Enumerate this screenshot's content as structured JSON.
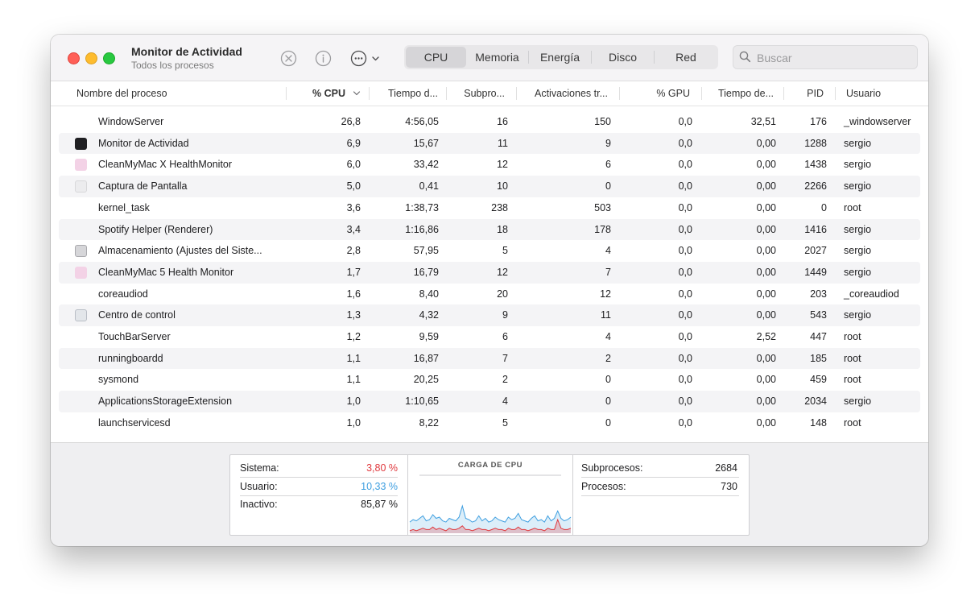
{
  "window": {
    "title": "Monitor de Actividad",
    "subtitle": "Todos los procesos"
  },
  "toolbar": {
    "stop_icon": "xmark-circle-icon",
    "info_icon": "info-circle-icon",
    "more_icon": "ellipsis-circle-icon"
  },
  "tabs": [
    {
      "label": "CPU",
      "active": true
    },
    {
      "label": "Memoria",
      "active": false
    },
    {
      "label": "Energía",
      "active": false
    },
    {
      "label": "Disco",
      "active": false
    },
    {
      "label": "Red",
      "active": false
    }
  ],
  "search": {
    "placeholder": "Buscar",
    "value": ""
  },
  "columns": [
    "Nombre del proceso",
    "% CPU",
    "Tiempo d...",
    "Subpro...",
    "Activaciones tr...",
    "% GPU",
    "Tiempo de...",
    "PID",
    "Usuario"
  ],
  "sorted_column": "% CPU",
  "rows": [
    {
      "name": "WindowServer",
      "cpu": "26,8",
      "time": "4:56,05",
      "threads": "16",
      "wakes": "150",
      "gpu": "0,0",
      "gpu_time": "32,51",
      "pid": "176",
      "user": "_windowserver",
      "icon": "none"
    },
    {
      "name": "Monitor de Actividad",
      "cpu": "6,9",
      "time": "15,67",
      "threads": "11",
      "wakes": "9",
      "gpu": "0,0",
      "gpu_time": "0,00",
      "pid": "1288",
      "user": "sergio",
      "icon": "activity-monitor-icon"
    },
    {
      "name": "CleanMyMac X HealthMonitor",
      "cpu": "6,0",
      "time": "33,42",
      "threads": "12",
      "wakes": "6",
      "gpu": "0,0",
      "gpu_time": "0,00",
      "pid": "1438",
      "user": "sergio",
      "icon": "cleanmymac-icon"
    },
    {
      "name": "Captura de Pantalla",
      "cpu": "5,0",
      "time": "0,41",
      "threads": "10",
      "wakes": "0",
      "gpu": "0,0",
      "gpu_time": "0,00",
      "pid": "2266",
      "user": "sergio",
      "icon": "screenshot-icon"
    },
    {
      "name": "kernel_task",
      "cpu": "3,6",
      "time": "1:38,73",
      "threads": "238",
      "wakes": "503",
      "gpu": "0,0",
      "gpu_time": "0,00",
      "pid": "0",
      "user": "root",
      "icon": "none"
    },
    {
      "name": "Spotify Helper (Renderer)",
      "cpu": "3,4",
      "time": "1:16,86",
      "threads": "18",
      "wakes": "178",
      "gpu": "0,0",
      "gpu_time": "0,00",
      "pid": "1416",
      "user": "sergio",
      "icon": "none"
    },
    {
      "name": "Almacenamiento (Ajustes del Siste...",
      "cpu": "2,8",
      "time": "57,95",
      "threads": "5",
      "wakes": "4",
      "gpu": "0,0",
      "gpu_time": "0,00",
      "pid": "2027",
      "user": "sergio",
      "icon": "storage-icon"
    },
    {
      "name": "CleanMyMac 5 Health Monitor",
      "cpu": "1,7",
      "time": "16,79",
      "threads": "12",
      "wakes": "7",
      "gpu": "0,0",
      "gpu_time": "0,00",
      "pid": "1449",
      "user": "sergio",
      "icon": "cleanmymac-icon"
    },
    {
      "name": "coreaudiod",
      "cpu": "1,6",
      "time": "8,40",
      "threads": "20",
      "wakes": "12",
      "gpu": "0,0",
      "gpu_time": "0,00",
      "pid": "203",
      "user": "_coreaudiod",
      "icon": "none"
    },
    {
      "name": "Centro de control",
      "cpu": "1,3",
      "time": "4,32",
      "threads": "9",
      "wakes": "11",
      "gpu": "0,0",
      "gpu_time": "0,00",
      "pid": "543",
      "user": "sergio",
      "icon": "control-center-icon"
    },
    {
      "name": "TouchBarServer",
      "cpu": "1,2",
      "time": "9,59",
      "threads": "6",
      "wakes": "4",
      "gpu": "0,0",
      "gpu_time": "2,52",
      "pid": "447",
      "user": "root",
      "icon": "none"
    },
    {
      "name": "runningboardd",
      "cpu": "1,1",
      "time": "16,87",
      "threads": "7",
      "wakes": "2",
      "gpu": "0,0",
      "gpu_time": "0,00",
      "pid": "185",
      "user": "root",
      "icon": "none"
    },
    {
      "name": "sysmond",
      "cpu": "1,1",
      "time": "20,25",
      "threads": "2",
      "wakes": "0",
      "gpu": "0,0",
      "gpu_time": "0,00",
      "pid": "459",
      "user": "root",
      "icon": "none"
    },
    {
      "name": "ApplicationsStorageExtension",
      "cpu": "1,0",
      "time": "1:10,65",
      "threads": "4",
      "wakes": "0",
      "gpu": "0,0",
      "gpu_time": "0,00",
      "pid": "2034",
      "user": "sergio",
      "icon": "none"
    },
    {
      "name": "launchservicesd",
      "cpu": "1,0",
      "time": "8,22",
      "threads": "5",
      "wakes": "0",
      "gpu": "0,0",
      "gpu_time": "0,00",
      "pid": "148",
      "user": "root",
      "icon": "none"
    }
  ],
  "summary": {
    "system_label": "Sistema:",
    "system_value": "3,80 %",
    "user_label": "Usuario:",
    "user_value": "10,33 %",
    "idle_label": "Inactivo:",
    "idle_value": "85,87 %",
    "chart_title": "CARGA DE CPU",
    "threads_label": "Subprocesos:",
    "threads_value": "2684",
    "processes_label": "Procesos:",
    "processes_value": "730"
  },
  "colors": {
    "system": "#e0393e",
    "user": "#3f9fe0"
  },
  "cpu_load_chart": {
    "series": [
      {
        "values": [
          0.02,
          0.03,
          0.02,
          0.03,
          0.04,
          0.03,
          0.03,
          0.05,
          0.03,
          0.04,
          0.03,
          0.02,
          0.04,
          0.03,
          0.03,
          0.04,
          0.06,
          0.03,
          0.03,
          0.02,
          0.03,
          0.04,
          0.03,
          0.03,
          0.02,
          0.03,
          0.04,
          0.03,
          0.03,
          0.02,
          0.04,
          0.03,
          0.03,
          0.05,
          0.03,
          0.03,
          0.02,
          0.03,
          0.04,
          0.03,
          0.03,
          0.02,
          0.04,
          0.03,
          0.03,
          0.11,
          0.04,
          0.03,
          0.03,
          0.04
        ]
      },
      {
        "values": [
          0.09,
          0.11,
          0.1,
          0.12,
          0.14,
          0.1,
          0.11,
          0.15,
          0.12,
          0.13,
          0.1,
          0.09,
          0.12,
          0.11,
          0.1,
          0.13,
          0.22,
          0.12,
          0.11,
          0.09,
          0.1,
          0.14,
          0.1,
          0.12,
          0.09,
          0.1,
          0.13,
          0.11,
          0.1,
          0.09,
          0.13,
          0.11,
          0.12,
          0.16,
          0.11,
          0.1,
          0.09,
          0.12,
          0.14,
          0.1,
          0.11,
          0.09,
          0.14,
          0.1,
          0.12,
          0.18,
          0.12,
          0.1,
          0.11,
          0.13
        ]
      }
    ]
  }
}
